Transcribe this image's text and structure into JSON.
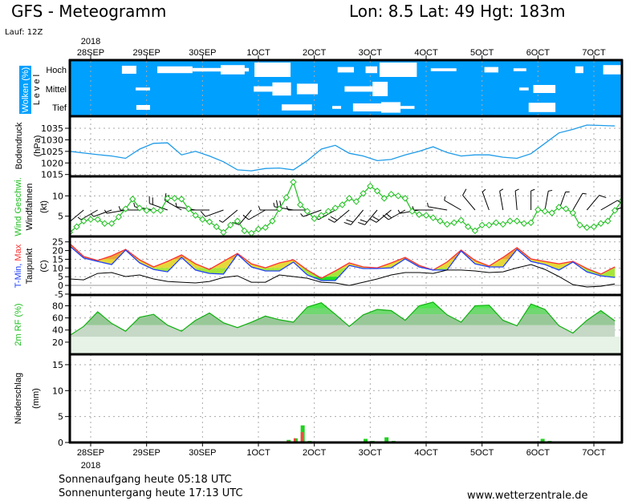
{
  "header": {
    "title": "GFS - Meteogramm",
    "location": "Lon: 8.5 Lat: 49 Hgt: 183m",
    "run": "Lauf: 12Z"
  },
  "axis": {
    "year": "2018",
    "hour_units": "hours after 28SEP 00Z",
    "range_hours": [
      -9,
      228
    ],
    "days": [
      {
        "label": "28SEP",
        "hour": 0
      },
      {
        "label": "29SEP",
        "hour": 24
      },
      {
        "label": "30SEP",
        "hour": 48
      },
      {
        "label": "1OCT",
        "hour": 72
      },
      {
        "label": "2OCT",
        "hour": 96
      },
      {
        "label": "3OCT",
        "hour": 120
      },
      {
        "label": "4OCT",
        "hour": 144
      },
      {
        "label": "5OCT",
        "hour": 168
      },
      {
        "label": "6OCT",
        "hour": 192
      },
      {
        "label": "7OCT",
        "hour": 216
      }
    ]
  },
  "labels": {
    "clouds": {
      "title": "Wolken (%)",
      "level": "L e v e l",
      "rows": [
        "Hoch",
        "Mittel",
        "Tief"
      ]
    },
    "pressure": {
      "title": "Bodendruck",
      "unit": "(hPa)"
    },
    "wind": {
      "title": "Wind Geschwi.",
      "sub": "Windfahnen",
      "unit": "(kt)"
    },
    "temp": {
      "tmin": "T-Min,",
      "tmax": "Max",
      "sub": "Taupunkt",
      "unit": "(C)"
    },
    "rh": {
      "title": "2m RF (%)"
    },
    "precip": {
      "title": "Niederschlag",
      "unit": "(mm)"
    }
  },
  "colors": {
    "cloud_bg": "#00a0ff",
    "pressure": "#1e9be8",
    "wind": "#20c020",
    "tmax": "#ff3030",
    "tmin": "#2040ff",
    "dew": "#000000",
    "precip": "#20d020",
    "precip_conv": "#ff4040"
  },
  "chart_data": [
    {
      "id": "clouds",
      "type": "heatmap",
      "title": "Wolken (%)",
      "rows": [
        {
          "name": "Hoch",
          "patches": [
            [
              13.4,
              19.6,
              0.5
            ],
            [
              28.6,
              43.7,
              0.4
            ],
            [
              43.7,
              67.9,
              0.15
            ],
            [
              55.8,
              66.1,
              0.6
            ],
            [
              70.3,
              85.8,
              1.0
            ],
            [
              106,
              113,
              0.3
            ],
            [
              118,
              123,
              0.4
            ],
            [
              124,
              140,
              1.0
            ],
            [
              146,
              157,
              0.1
            ],
            [
              169,
              175,
              0.3
            ],
            [
              181.5,
              187,
              0.1
            ],
            [
              208,
              211.5,
              0.4
            ],
            [
              220,
              228,
              0.6
            ]
          ]
        },
        {
          "name": "Mittel",
          "patches": [
            [
              19.3,
              25.5,
              0.1
            ],
            [
              70,
              78,
              0.3
            ],
            [
              78,
              86,
              0.9
            ],
            [
              88.5,
              97.5,
              0.7
            ],
            [
              109,
              121,
              0.3
            ],
            [
              121,
              127.5,
              1.0
            ],
            [
              184,
              188,
              0.1
            ],
            [
              190,
              199.5,
              0.5
            ]
          ]
        },
        {
          "name": "Tief",
          "patches": [
            [
              19.6,
              25.5,
              0.25
            ],
            [
              82,
              95,
              0.35
            ],
            [
              103.7,
              107.5,
              0.1
            ],
            [
              112.6,
              124.7,
              0.5
            ],
            [
              124.7,
              133,
              0.7
            ],
            [
              133,
              139,
              0.1
            ],
            [
              188,
              199.5,
              0.6
            ]
          ]
        }
      ]
    },
    {
      "id": "pressure",
      "type": "line",
      "ylabel": "Bodendruck (hPa)",
      "ylim": [
        1014.2,
        1040.2
      ],
      "yticks": [
        1015,
        1020,
        1025,
        1030,
        1035
      ],
      "start_hour": -9,
      "step_hours": 6,
      "values": [
        1025,
        1024.3,
        1023.6,
        1023,
        1022,
        1026,
        1028.5,
        1028.7,
        1023.5,
        1025,
        1023,
        1020.5,
        1017,
        1016.6,
        1017.6,
        1017.8,
        1017,
        1021,
        1026,
        1027.6,
        1024.2,
        1023,
        1021,
        1021.5,
        1023.5,
        1025,
        1027,
        1024.5,
        1023,
        1023.5,
        1023.5,
        1022.5,
        1022,
        1024,
        1028.5,
        1033,
        1034.5,
        1036.4,
        1036.2,
        1036
      ]
    },
    {
      "id": "wind",
      "type": "line",
      "ylabel": "Wind Geschwi. (kt)",
      "ylim": [
        0,
        14.8
      ],
      "yticks": [
        5,
        10
      ],
      "start_hour": -9,
      "step_hours": 3,
      "values": [
        1,
        2.4,
        3.8,
        4.2,
        4.2,
        3.2,
        3.2,
        4.8,
        6.8,
        9.2,
        7,
        6.4,
        6.4,
        6.4,
        9.4,
        9.4,
        9.2,
        6.8,
        5.2,
        4.2,
        3.6,
        2.4,
        1,
        2.8,
        3.8,
        1.4,
        0.8,
        1.8,
        2.2,
        3.8,
        6.8,
        9.6,
        13.4,
        7.8,
        6.2,
        4.4,
        5.2,
        6.2,
        7,
        7.8,
        9.4,
        8.6,
        10.6,
        12.4,
        11.2,
        9.4,
        10.4,
        10,
        9.4,
        6.2,
        5.4,
        5.2,
        4.6,
        3.8,
        3,
        3.4,
        4,
        2.4,
        1.4,
        2.8,
        2.8,
        3.4,
        3,
        3.8,
        3.8,
        3.2,
        3.4,
        6.6,
        6.2,
        5.8,
        7.2,
        6.8,
        5.8,
        2.8,
        2.2,
        2.4,
        3.2,
        3.8,
        6.4,
        8.8
      ],
      "barb_direction_deg_6h": [
        220,
        230,
        240,
        250,
        260,
        270,
        280,
        290,
        300,
        280,
        270,
        250,
        230,
        220,
        240,
        270,
        280,
        270,
        250,
        240,
        230,
        220,
        220,
        230,
        240,
        260,
        270,
        280,
        300,
        320,
        340,
        350,
        355,
        0,
        10,
        20,
        30,
        40,
        60,
        70
      ]
    },
    {
      "id": "temperature",
      "type": "area",
      "ylabel": "T-Min, Max / Taupunkt (C)",
      "ylim": [
        -5.5,
        28.1
      ],
      "yticks": [
        -5,
        0,
        5,
        10,
        15,
        20,
        25
      ],
      "start_hour": -9,
      "step_hours": 6,
      "series": [
        {
          "name": "Max",
          "values": [
            24,
            16.6,
            14.3,
            17,
            20.7,
            14.7,
            10.6,
            13.8,
            17.5,
            12.4,
            9.2,
            13.8,
            18.4,
            12.4,
            10.1,
            12.9,
            14.7,
            8.8,
            4.1,
            8.3,
            12.9,
            10.6,
            10.1,
            12.9,
            16.1,
            11.5,
            8.8,
            13.4,
            20.3,
            14.3,
            11.1,
            16.1,
            21.7,
            15.2,
            13.8,
            12.4,
            13.8,
            9.7,
            6.5,
            10.6
          ]
        },
        {
          "name": "T-Min",
          "values": [
            22.6,
            15.7,
            13.8,
            12,
            20.3,
            12.9,
            9.2,
            7.8,
            16.1,
            8.8,
            6.9,
            6.5,
            17.9,
            10.6,
            8.3,
            8.3,
            13.4,
            6,
            2.8,
            2.8,
            11.5,
            9.7,
            9.7,
            10.1,
            15.2,
            10.6,
            8.8,
            8.8,
            19.8,
            12.4,
            10.6,
            10.6,
            20.7,
            13.8,
            12,
            8.8,
            13.4,
            7.8,
            5.5,
            4.6
          ]
        },
        {
          "name": "Taupunkt",
          "values": [
            3.7,
            3.2,
            6.9,
            7.4,
            5.1,
            6,
            3.7,
            2.3,
            1.8,
            1.4,
            2.3,
            4.6,
            5.5,
            1.8,
            1.8,
            6,
            5.1,
            4.1,
            1.8,
            1.4,
            0,
            1.8,
            3.7,
            6,
            7.4,
            7.4,
            6.9,
            8.8,
            8.8,
            8.3,
            7.4,
            7.8,
            10.1,
            12,
            9.2,
            5.1,
            0.5,
            -0.9,
            -0.5,
            0.9
          ]
        }
      ]
    },
    {
      "id": "humidity",
      "type": "area",
      "ylabel": "2m RF (%)",
      "ylim": [
        0,
        97.8
      ],
      "yticks": [
        20,
        40,
        60,
        80
      ],
      "start_hour": -9,
      "step_hours": 6,
      "values": [
        31,
        46,
        70,
        51,
        38,
        61,
        66,
        48,
        38,
        56,
        68,
        52,
        44,
        53,
        63,
        57,
        53,
        78,
        85,
        66,
        46,
        65,
        74,
        72,
        56,
        80,
        86,
        65,
        53,
        80,
        81,
        56,
        47,
        83,
        74,
        47,
        35,
        56,
        72,
        55
      ]
    },
    {
      "id": "precipitation",
      "type": "bar",
      "ylabel": "Niederschlag (mm)",
      "ylim": [
        0,
        17
      ],
      "yticks": [
        0,
        5,
        10,
        15
      ],
      "hours": [
        85,
        88,
        91,
        94,
        118,
        121,
        127,
        130,
        194,
        197
      ],
      "series": [
        {
          "name": "total",
          "values": [
            0.5,
            0.8,
            3.3,
            0.3,
            0.7,
            0.3,
            1.0,
            0.3,
            0.7,
            0.3
          ]
        },
        {
          "name": "convective",
          "values": [
            0.3,
            0.8,
            2.0,
            0,
            0,
            0,
            0,
            0,
            0,
            0
          ]
        }
      ]
    }
  ],
  "footer": {
    "sunrise": "Sonnenaufgang heute 05:18 UTC",
    "sunset": "Sonnenuntergang heute 17:13 UTC",
    "website": "www.wetterzentrale.de"
  }
}
